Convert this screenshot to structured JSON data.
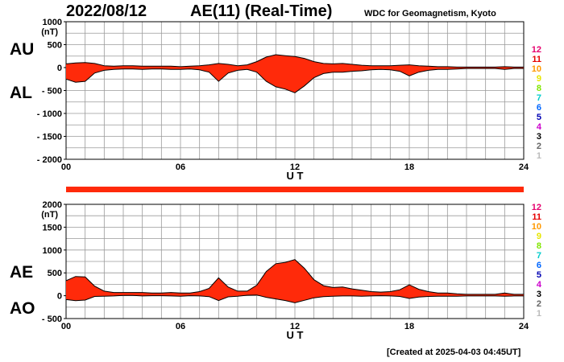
{
  "header": {
    "date": "2022/08/12",
    "title": "AE(11) (Real-Time)",
    "credit": "WDC for Geomagnetism, Kyoto"
  },
  "side_labels": {
    "au": "AU",
    "al": "AL",
    "ae": "AE",
    "ao": "AO"
  },
  "footer": {
    "created": "[Created at 2025-04-03 04:45UT]"
  },
  "legend": {
    "items": [
      "12",
      "11",
      "10",
      "9",
      "8",
      "7",
      "6",
      "5",
      "4",
      "3",
      "2",
      "1"
    ],
    "colors": [
      "#e6006e",
      "#e60000",
      "#ff9900",
      "#e6e600",
      "#80e600",
      "#00cccc",
      "#0066ff",
      "#0000b3",
      "#cc00cc",
      "#000000",
      "#666666",
      "#bbbbbb"
    ]
  },
  "colors": {
    "fill": "#ff2a0a",
    "line": "#000000",
    "grid": "#9a9a9a",
    "bar": "#ff2a0a"
  },
  "chart_data": [
    {
      "type": "area",
      "xlabel": "U T",
      "ylabel": "(nT)",
      "xlim": [
        0,
        24
      ],
      "ylim": [
        -2000,
        1000
      ],
      "xticks": [
        0,
        6,
        12,
        18,
        24
      ],
      "xticklabels": [
        "00",
        "06",
        "12",
        "18",
        "24"
      ],
      "yticks": [
        1000,
        500,
        0,
        -500,
        -1000,
        -1500,
        -2000
      ],
      "yticklabels": [
        "1000",
        "500",
        "0",
        "- 500",
        "- 1000",
        "- 1500",
        "- 2000"
      ],
      "grid": true,
      "x": [
        0,
        0.5,
        1,
        1.5,
        2,
        2.5,
        3,
        3.5,
        4,
        4.5,
        5,
        5.5,
        6,
        6.5,
        7,
        7.5,
        8,
        8.5,
        9,
        9.5,
        10,
        10.5,
        11,
        11.5,
        12,
        12.5,
        13,
        13.5,
        14,
        14.5,
        15,
        15.5,
        16,
        16.5,
        17,
        17.5,
        18,
        18.5,
        19,
        19.5,
        20,
        20.5,
        21,
        21.5,
        22,
        22.5,
        23,
        23.5,
        24
      ],
      "series": [
        {
          "name": "AU",
          "values": [
            80,
            100,
            110,
            90,
            40,
            30,
            40,
            40,
            30,
            30,
            30,
            30,
            20,
            30,
            40,
            60,
            90,
            70,
            40,
            60,
            130,
            230,
            280,
            260,
            240,
            200,
            130,
            90,
            80,
            90,
            70,
            50,
            40,
            40,
            40,
            50,
            60,
            40,
            30,
            20,
            20,
            10,
            10,
            10,
            10,
            10,
            20,
            10,
            10
          ]
        },
        {
          "name": "AL",
          "values": [
            -250,
            -320,
            -300,
            -120,
            -60,
            -40,
            -30,
            -30,
            -40,
            -30,
            -30,
            -40,
            -40,
            -30,
            -50,
            -100,
            -300,
            -120,
            -60,
            -40,
            -100,
            -300,
            -420,
            -470,
            -550,
            -400,
            -220,
            -130,
            -100,
            -100,
            -80,
            -70,
            -50,
            -40,
            -50,
            -80,
            -180,
            -100,
            -60,
            -40,
            -40,
            -30,
            -20,
            -20,
            -20,
            -20,
            -40,
            -20,
            -20
          ]
        }
      ]
    },
    {
      "type": "area",
      "xlabel": "U T",
      "ylabel": "(nT)",
      "xlim": [
        0,
        24
      ],
      "ylim": [
        -500,
        2000
      ],
      "xticks": [
        0,
        6,
        12,
        18,
        24
      ],
      "xticklabels": [
        "00",
        "06",
        "12",
        "18",
        "24"
      ],
      "yticks": [
        2000,
        1500,
        1000,
        500,
        0,
        -500
      ],
      "yticklabels": [
        "2000",
        "1500",
        "1000",
        "500",
        "0",
        "- 500"
      ],
      "grid": true,
      "x": [
        0,
        0.5,
        1,
        1.5,
        2,
        2.5,
        3,
        3.5,
        4,
        4.5,
        5,
        5.5,
        6,
        6.5,
        7,
        7.5,
        8,
        8.5,
        9,
        9.5,
        10,
        10.5,
        11,
        11.5,
        12,
        12.5,
        13,
        13.5,
        14,
        14.5,
        15,
        15.5,
        16,
        16.5,
        17,
        17.5,
        18,
        18.5,
        19,
        19.5,
        20,
        20.5,
        21,
        21.5,
        22,
        22.5,
        23,
        23.5,
        24
      ],
      "series": [
        {
          "name": "AE",
          "values": [
            330,
            420,
            410,
            210,
            100,
            70,
            70,
            70,
            70,
            60,
            60,
            70,
            60,
            60,
            90,
            160,
            390,
            190,
            100,
            100,
            230,
            530,
            700,
            730,
            790,
            600,
            350,
            220,
            180,
            190,
            150,
            120,
            90,
            80,
            90,
            130,
            240,
            140,
            90,
            60,
            60,
            40,
            30,
            30,
            30,
            30,
            60,
            30,
            30
          ]
        },
        {
          "name": "AO",
          "values": [
            -85,
            -110,
            -95,
            -15,
            -10,
            -5,
            5,
            5,
            -5,
            0,
            0,
            -5,
            -10,
            0,
            -5,
            -20,
            -105,
            -25,
            -10,
            10,
            15,
            -35,
            -70,
            -105,
            -155,
            -100,
            -45,
            -20,
            -10,
            -5,
            -5,
            -10,
            -5,
            0,
            -5,
            -15,
            -60,
            -30,
            -15,
            -10,
            -10,
            -10,
            -5,
            -5,
            -5,
            -5,
            -10,
            -5,
            -5
          ]
        }
      ]
    }
  ]
}
